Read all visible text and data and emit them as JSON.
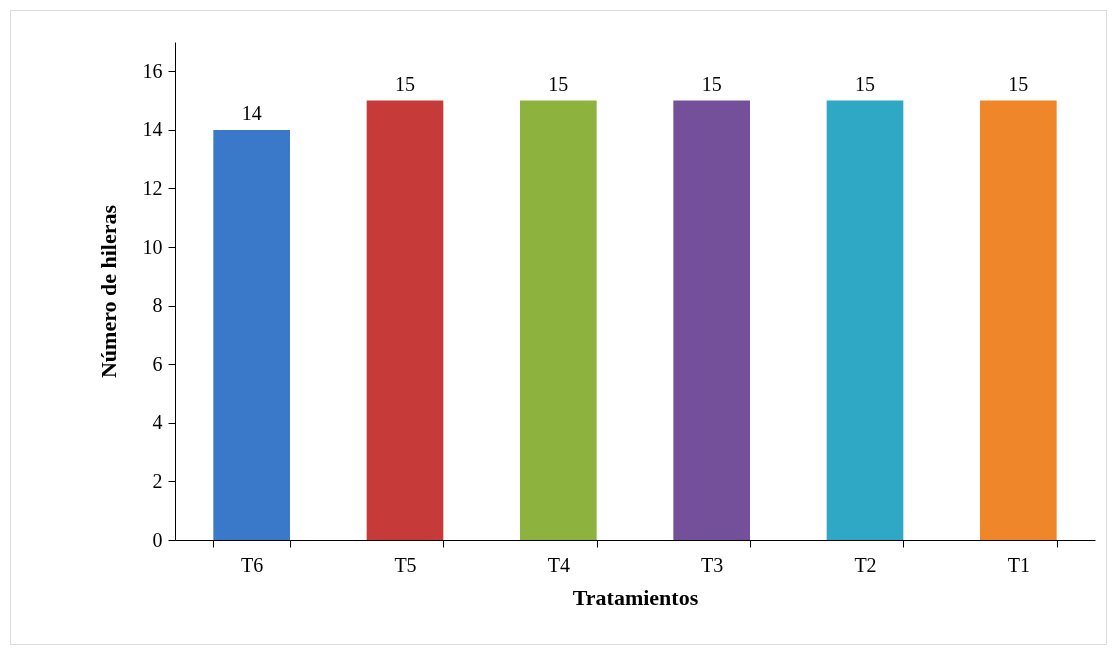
{
  "chart_data": {
    "type": "bar",
    "xlabel": "Tratamientos",
    "ylabel": "Número de hileras",
    "categories": [
      "T6",
      "T5",
      "T4",
      "T3",
      "T2",
      "T1"
    ],
    "values": [
      14,
      15,
      15,
      15,
      15,
      15
    ],
    "colors": [
      "#3a78c9",
      "#c63b3a",
      "#8db33e",
      "#74509a",
      "#2fa8c6",
      "#f0862a"
    ],
    "ylim": [
      0,
      17
    ],
    "yticks": [
      0,
      2,
      4,
      6,
      8,
      10,
      12,
      14,
      16
    ],
    "grid": false,
    "data_labels": true
  }
}
